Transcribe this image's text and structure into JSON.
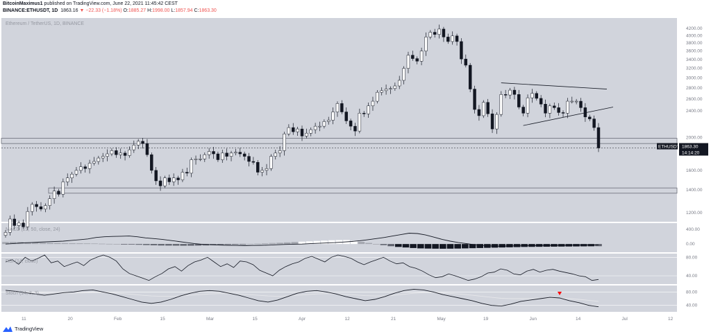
{
  "header": {
    "author": "BitcoinMaximus1",
    "published": "published on TradingView.com, June 22, 2021 11:45:42 CEST",
    "symbol": "BINANCE:ETHUSDT, 1D",
    "last": "1863.16",
    "change": "▼ −22.33 (−1.18%)",
    "o_label": "O:",
    "o": "1885.27",
    "h_label": "H:",
    "h": "1998.00",
    "l_label": "L:",
    "l": "1857.94",
    "c_label": "C:",
    "c": "1863.30"
  },
  "watermarks": {
    "main": "Ethereum / TetherUS, 1D, BINANCE",
    "macd": "MACD (21, 50, close, 24)",
    "rsi": "RSI (14, close)",
    "stoch": "Stoch (14, 3, 3)"
  },
  "price_tag": {
    "symbol": "ETHUSDT",
    "price": "1863.30",
    "countdown": "14:14:20"
  },
  "footer": {
    "brand": "TradingView"
  },
  "colors": {
    "pane_bg": "#d1d4dc",
    "up": "#ffffff",
    "down": "#131722",
    "line": "#131722",
    "signal_line": "#e6e7ea",
    "marker": "#ff0000",
    "axis_bg": "#ffffff",
    "tag_bg": "#131722"
  },
  "chart_data": {
    "type": "candlestick",
    "symbol": "ETHUSDT",
    "timeframe": "1D",
    "x_tick_labels": [
      "11",
      "20",
      "Feb",
      "15",
      "Mar",
      "15",
      "Apr",
      "12",
      "21",
      "May",
      "19",
      "Jun",
      "14",
      "Jul",
      "12"
    ],
    "y_tick_labels": [
      "4200.00",
      "4000.00",
      "3800.00",
      "3600.00",
      "3400.00",
      "3200.00",
      "3000.00",
      "2800.00",
      "2600.00",
      "2400.00",
      "2000.00",
      "1600.00",
      "1400.00",
      "1200.00"
    ],
    "ylim": [
      1150,
      4380
    ],
    "close_series": [
      1050,
      1150,
      1100,
      1120,
      1090,
      1210,
      1270,
      1250,
      1230,
      1260,
      1320,
      1390,
      1360,
      1480,
      1520,
      1560,
      1600,
      1640,
      1620,
      1680,
      1700,
      1740,
      1760,
      1790,
      1830,
      1780,
      1800,
      1770,
      1840,
      1900,
      1950,
      1920,
      1780,
      1600,
      1490,
      1440,
      1520,
      1480,
      1520,
      1500,
      1580,
      1570,
      1720,
      1730,
      1730,
      1780,
      1820,
      1790,
      1720,
      1800,
      1760,
      1800,
      1810,
      1790,
      1760,
      1700,
      1690,
      1580,
      1600,
      1620,
      1760,
      1800,
      1830,
      2050,
      2140,
      2080,
      2120,
      2020,
      2060,
      2110,
      2160,
      2160,
      2230,
      2250,
      2380,
      2520,
      2380,
      2240,
      2160,
      2090,
      2360,
      2350,
      2480,
      2560,
      2720,
      2750,
      2780,
      2790,
      2840,
      2950,
      3200,
      3500,
      3420,
      3360,
      3600,
      3960,
      4090,
      4030,
      4180,
      3960,
      3840,
      3990,
      3840,
      3410,
      3270,
      2780,
      2420,
      2320,
      2540,
      2350,
      2120,
      2340,
      2680,
      2670,
      2760,
      2680,
      2460,
      2360,
      2620,
      2700,
      2610,
      2510,
      2360,
      2480,
      2450,
      2370,
      2360,
      2560,
      2560,
      2560,
      2450,
      2300,
      2270,
      2140,
      1863.3
    ],
    "resistance_zone": [
      1920,
      1990
    ],
    "support_zone": [
      1370,
      1420
    ],
    "triangle_resistance": [
      [
        2900,
        2780
      ]
    ],
    "ascending_support": [
      [
        2170,
        2460
      ]
    ],
    "last_price": 1863.3,
    "macd": {
      "y_tick_labels": [
        "400.00",
        "0.00"
      ],
      "ylim": [
        -150,
        500
      ],
      "histogram": [
        55,
        57,
        55,
        48,
        40,
        35,
        30,
        28,
        25,
        22,
        20,
        18,
        16,
        10,
        5,
        0,
        -5,
        -12,
        -20,
        -28,
        -35,
        -40,
        -42,
        -44,
        -46,
        -45,
        -42,
        -38,
        -30,
        -22,
        -15,
        -8,
        -2,
        5,
        12,
        20,
        28,
        35,
        45,
        55,
        65,
        75,
        85,
        95,
        105,
        110,
        112,
        90,
        60,
        30,
        0,
        -30,
        -60,
        -80,
        -95,
        -110,
        -120,
        -125,
        -128,
        -130,
        -128,
        -125,
        -120,
        -115,
        -110,
        -105,
        -100,
        -95,
        -90,
        -85,
        -80,
        -78,
        -76,
        -74,
        -72,
        -70,
        -68,
        -66,
        -64,
        -62,
        -60
      ],
      "line_samples": [
        0,
        15,
        30,
        40,
        50,
        60,
        70,
        80,
        100,
        120,
        140,
        180,
        200,
        210,
        215,
        220,
        200,
        170,
        150,
        130,
        100,
        70,
        40,
        10,
        -10,
        -20,
        -30,
        -35,
        -40,
        -45,
        -40,
        -35,
        -30,
        -20,
        -10,
        -5,
        0,
        10,
        20,
        30,
        40,
        55,
        70,
        90,
        120,
        150,
        180,
        220,
        260,
        300,
        290,
        250,
        190,
        130,
        80,
        40,
        10,
        -20,
        -40,
        -55,
        -60,
        -55,
        -50,
        -50,
        -45,
        -40,
        -40,
        -35,
        -35,
        -30,
        -30,
        -25,
        -25
      ]
    },
    "rsi": {
      "y_tick_labels": [
        "80.00",
        "40.00"
      ],
      "ylim": [
        25,
        85
      ],
      "values": [
        70,
        75,
        65,
        80,
        72,
        78,
        85,
        68,
        72,
        60,
        65,
        70,
        62,
        74,
        80,
        85,
        80,
        72,
        55,
        45,
        40,
        35,
        30,
        38,
        45,
        55,
        60,
        50,
        62,
        70,
        74,
        80,
        70,
        60,
        66,
        58,
        72,
        70,
        64,
        52,
        46,
        40,
        52,
        60,
        66,
        70,
        78,
        82,
        76,
        70,
        80,
        85,
        82,
        78,
        70,
        64,
        70,
        75,
        80,
        72,
        66,
        68,
        60,
        56,
        50,
        42,
        36,
        38,
        44,
        40,
        35,
        30,
        33,
        38,
        46,
        48,
        55,
        52,
        44,
        42,
        50,
        54,
        48,
        52,
        54,
        50,
        47,
        44,
        40,
        38,
        30,
        32
      ]
    },
    "stoch": {
      "y_tick_labels": [
        "80.00",
        "40.00"
      ],
      "ylim": [
        25,
        95
      ],
      "k": [
        85,
        82,
        78,
        74,
        70,
        74,
        78,
        80,
        84,
        86,
        80,
        74,
        66,
        58,
        50,
        46,
        50,
        58,
        68,
        76,
        82,
        84,
        82,
        76,
        70,
        62,
        54,
        50,
        56,
        66,
        76,
        82,
        84,
        80,
        74,
        66,
        60,
        54,
        58,
        66,
        76,
        84,
        88,
        86,
        80,
        72,
        66,
        60,
        54,
        46,
        40,
        38,
        44,
        52,
        56,
        60,
        64,
        62,
        54,
        48,
        40,
        36
      ],
      "d": [
        80,
        80,
        79,
        78,
        77,
        76,
        76,
        76,
        77,
        78,
        78,
        77,
        75,
        73,
        70,
        68,
        67,
        67,
        68,
        70,
        72,
        74,
        75,
        75,
        74,
        72,
        70,
        68,
        67,
        68,
        70,
        72,
        74,
        75,
        74,
        73,
        71,
        69,
        68,
        68,
        70,
        73,
        76,
        78,
        78,
        77,
        75,
        73,
        70,
        67,
        64,
        61,
        60,
        60,
        60,
        61,
        62,
        62,
        60,
        58,
        55,
        52
      ],
      "marker": "sell"
    }
  }
}
